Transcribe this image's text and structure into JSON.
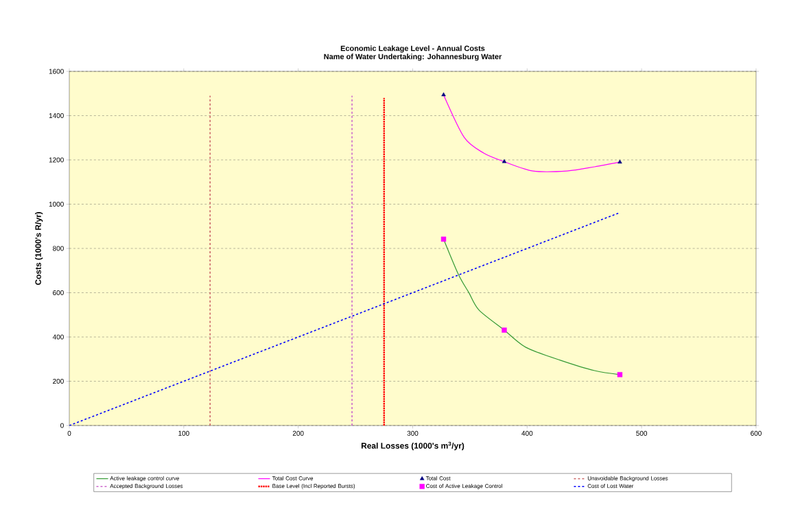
{
  "chart_data": {
    "type": "line",
    "title": "Economic Leakage Level - Annual Costs",
    "subtitle": "Name of Water Undertaking: Johannesburg Water",
    "xlabel": "Real Losses (1000's m$^{3}$/yr)",
    "ylabel": "Costs (1000's R/yr)",
    "xlim": [
      0,
      600
    ],
    "ylim": [
      0,
      1600
    ],
    "xticks": [
      0,
      100,
      200,
      300,
      400,
      500,
      600
    ],
    "yticks": [
      0,
      200,
      400,
      600,
      800,
      1000,
      1200,
      1400,
      1600
    ],
    "grid": "y",
    "legend": "bottom",
    "series": [
      {
        "name": "Active leakage control curve",
        "color": "#339933",
        "line_style": "solid",
        "x": [
          327,
          340,
          349,
          358,
          380,
          399,
          429,
          459,
          481
        ],
        "values": [
          842,
          682,
          601,
          521,
          431,
          353,
          295,
          248,
          230
        ]
      },
      {
        "name": "Total Cost Curve",
        "color": "#ff00ff",
        "line_style": "solid",
        "x": [
          327,
          345,
          362,
          380,
          405,
          435,
          459,
          481
        ],
        "values": [
          1494,
          1302,
          1231,
          1192,
          1150,
          1150,
          1169,
          1190
        ]
      },
      {
        "name": "Total Cost",
        "type": "scatter",
        "marker": "triangle",
        "color": "#000080",
        "x": [
          327,
          380,
          481
        ],
        "values": [
          1494,
          1192,
          1190
        ]
      },
      {
        "name": "Unavoidable Background Losses",
        "color": "#cc6666",
        "line_style": "dashed",
        "x": [
          123,
          123
        ],
        "values": [
          0,
          1490
        ]
      },
      {
        "name": "Accepted Background Losses",
        "color": "#cc66cc",
        "line_style": "dashed",
        "x": [
          247,
          247
        ],
        "values": [
          0,
          1490
        ]
      },
      {
        "name": "Base Level (Incl Reported Bursts)",
        "color": "#ff0000",
        "line_style": "dotted",
        "x": [
          275,
          275
        ],
        "values": [
          0,
          1480
        ]
      },
      {
        "name": "Cost of Active Leakage Control",
        "type": "scatter",
        "marker": "square",
        "color": "#ff00ff",
        "x": [
          327,
          380,
          481
        ],
        "values": [
          842,
          431,
          230
        ]
      },
      {
        "name": "Cost of Lost Water",
        "color": "#0000ff",
        "line_style": "dashed",
        "x": [
          0,
          481
        ],
        "values": [
          0,
          962
        ]
      }
    ]
  }
}
